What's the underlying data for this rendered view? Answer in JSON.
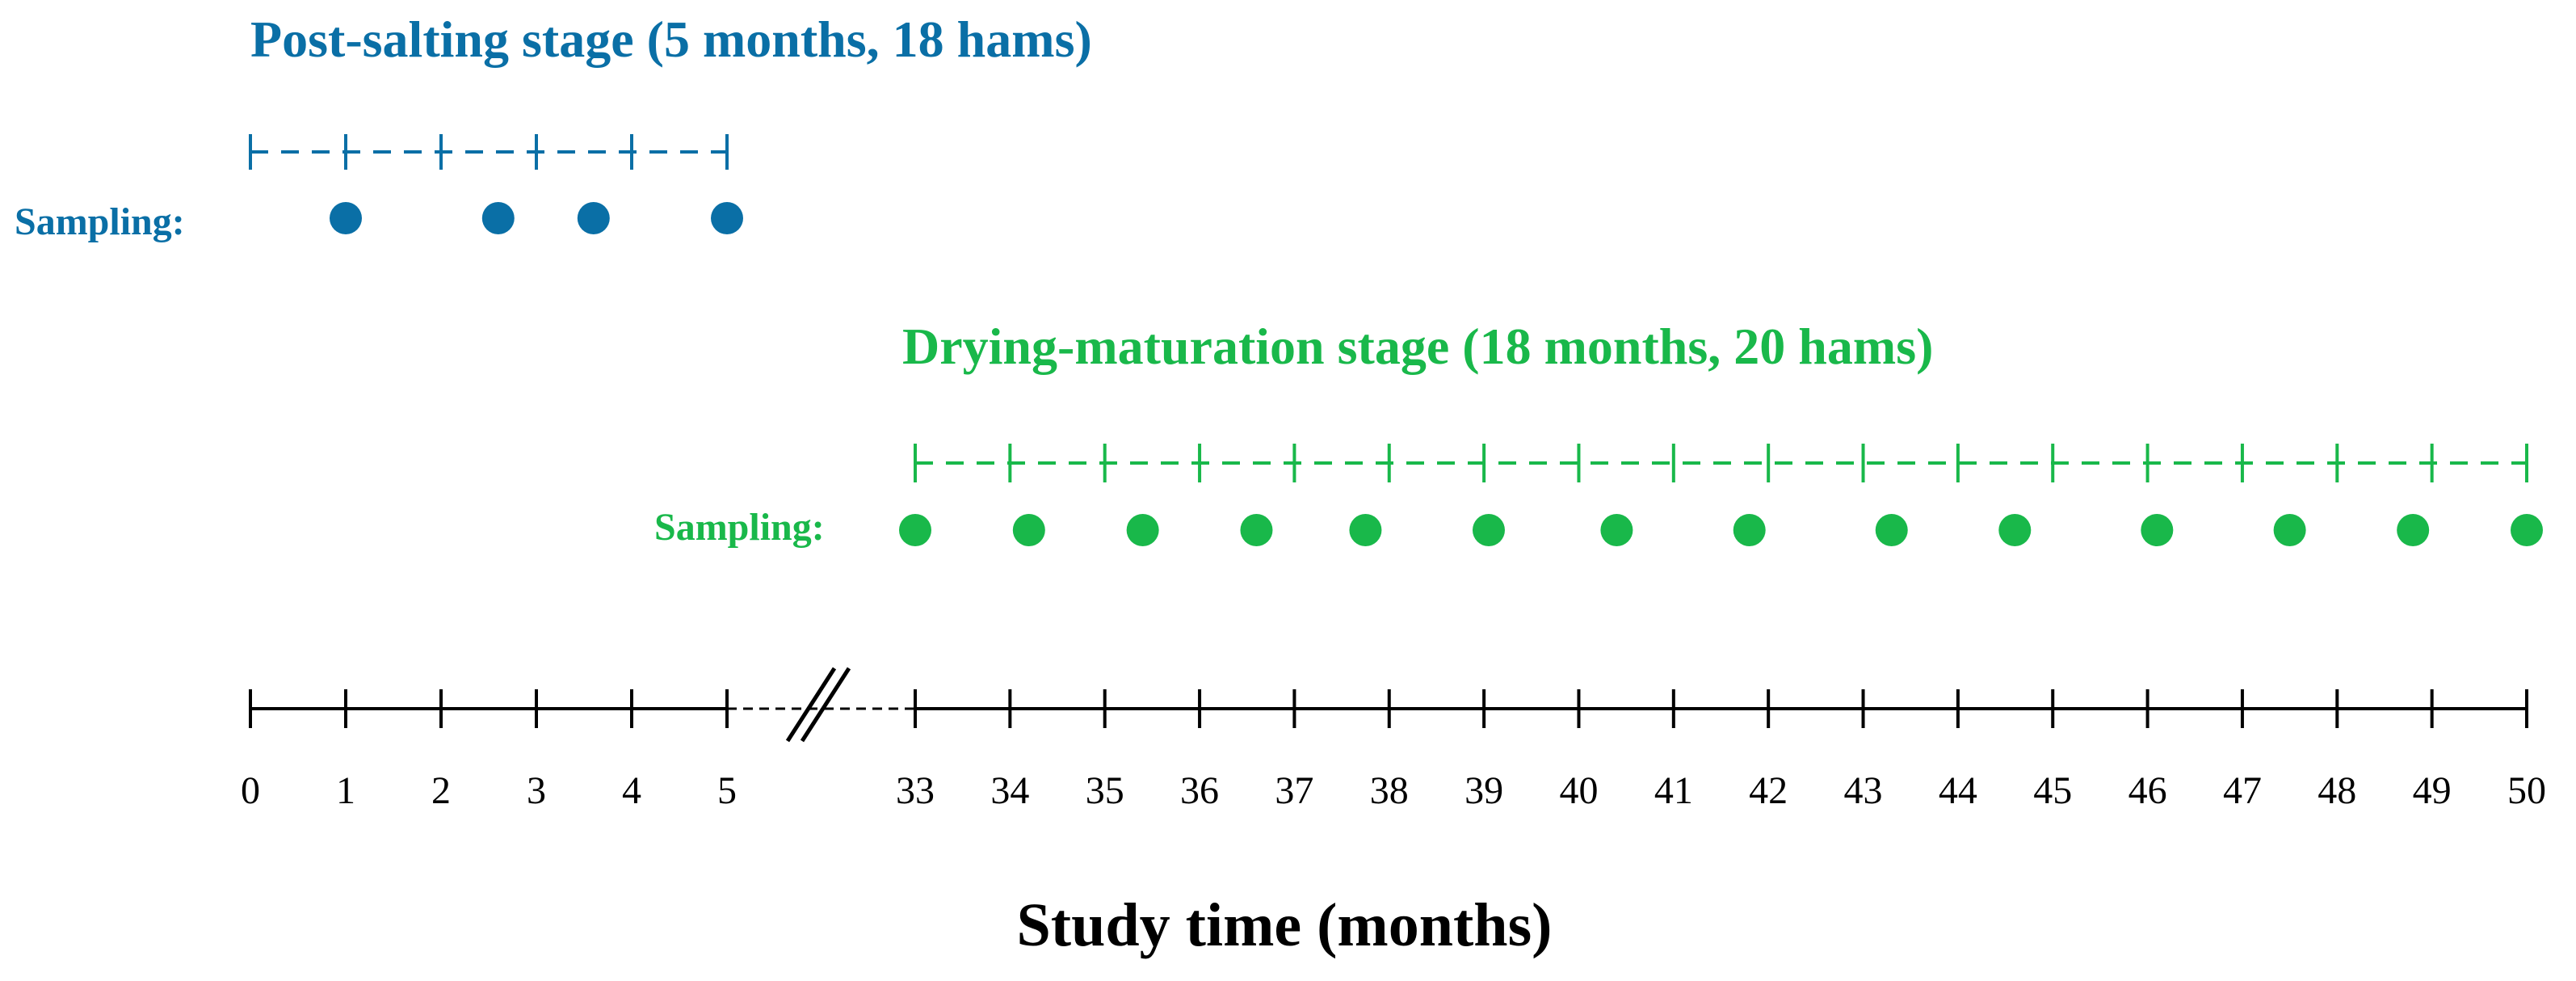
{
  "colors": {
    "post_salting": "#0a6fa6",
    "drying": "#19b84a",
    "axis": "#000000"
  },
  "post_salting": {
    "title": "Post-salting stage (5 months, 18 hams)",
    "sampling_label": "Sampling:",
    "ticks": [
      0,
      1,
      2,
      3,
      4,
      5
    ],
    "samples": [
      1,
      2.6,
      3.6,
      5
    ]
  },
  "drying": {
    "title": "Drying-maturation stage (18 months, 20 hams)",
    "sampling_label": "Sampling:",
    "ticks": [
      33,
      34,
      35,
      36,
      37,
      38,
      39,
      40,
      41,
      42,
      43,
      44,
      45,
      46,
      47,
      48,
      49,
      50
    ],
    "samples": [
      33,
      34.2,
      35.4,
      36.6,
      37.75,
      39.05,
      40.4,
      41.8,
      43.3,
      44.6,
      46.1,
      47.5,
      48.8,
      50
    ]
  },
  "axis": {
    "title": "Study time (months)",
    "tick_labels": [
      "0",
      "1",
      "2",
      "3",
      "4",
      "5",
      "33",
      "34",
      "35",
      "36",
      "37",
      "38",
      "39",
      "40",
      "41",
      "42",
      "43",
      "44",
      "45",
      "46",
      "47",
      "48",
      "49",
      "50"
    ]
  }
}
